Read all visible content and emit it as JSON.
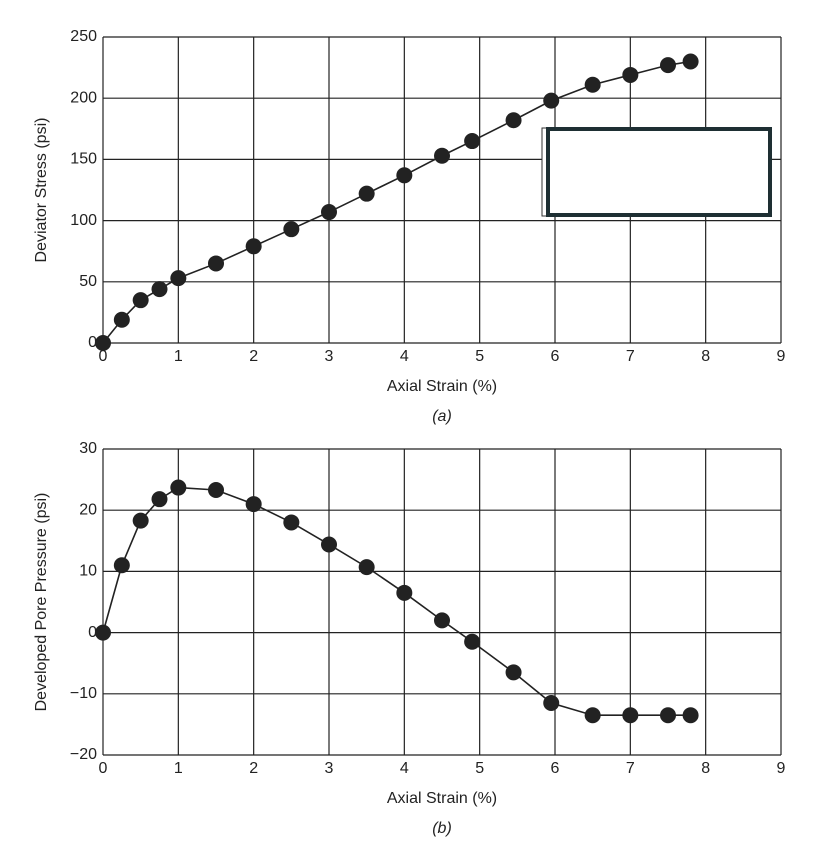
{
  "chart_data": [
    {
      "type": "line",
      "x_label": "Axial Strain (%)",
      "y_label": "Deviator Stress (psi)",
      "caption": "(a)",
      "x": [
        0,
        0.25,
        0.5,
        0.75,
        1,
        1.5,
        2,
        2.5,
        3,
        3.5,
        4,
        4.5,
        4.9,
        5.45,
        5.95,
        6.5,
        7,
        7.5,
        7.8
      ],
      "values": [
        0,
        19,
        35,
        44,
        53,
        65,
        79,
        93,
        107,
        122,
        137,
        153,
        165,
        182,
        198,
        211,
        219,
        227,
        230
      ],
      "color": "#222222",
      "xlim": [
        0,
        9
      ],
      "xticks": [
        0,
        1,
        2,
        3,
        4,
        5,
        6,
        7,
        8,
        9
      ],
      "ylim": [
        0,
        250
      ],
      "yticks": [
        0,
        50,
        100,
        150,
        200,
        250
      ],
      "grid": true
    },
    {
      "type": "line",
      "x_label": "Axial Strain (%)",
      "y_label": "Developed Pore Pressure (psi)",
      "caption": "(b)",
      "x": [
        0,
        0.25,
        0.5,
        0.75,
        1,
        1.5,
        2,
        2.5,
        3,
        3.5,
        4,
        4.5,
        4.9,
        5.45,
        5.95,
        6.5,
        7,
        7.5,
        7.8
      ],
      "values": [
        0,
        11,
        18.3,
        21.8,
        23.7,
        23.3,
        21,
        18,
        14.4,
        10.7,
        6.5,
        2,
        -1.5,
        -6.5,
        -11.5,
        -13.5,
        -13.5,
        -13.5,
        -13.5
      ],
      "color": "#222222",
      "xlim": [
        0,
        9
      ],
      "xticks": [
        0,
        1,
        2,
        3,
        4,
        5,
        6,
        7,
        8,
        9
      ],
      "ylim": [
        -20,
        30
      ],
      "yticks": [
        {
          "value": -20,
          "label": "−20"
        },
        {
          "value": -10,
          "label": "−10"
        },
        0,
        10,
        20,
        30
      ],
      "grid": true
    }
  ]
}
